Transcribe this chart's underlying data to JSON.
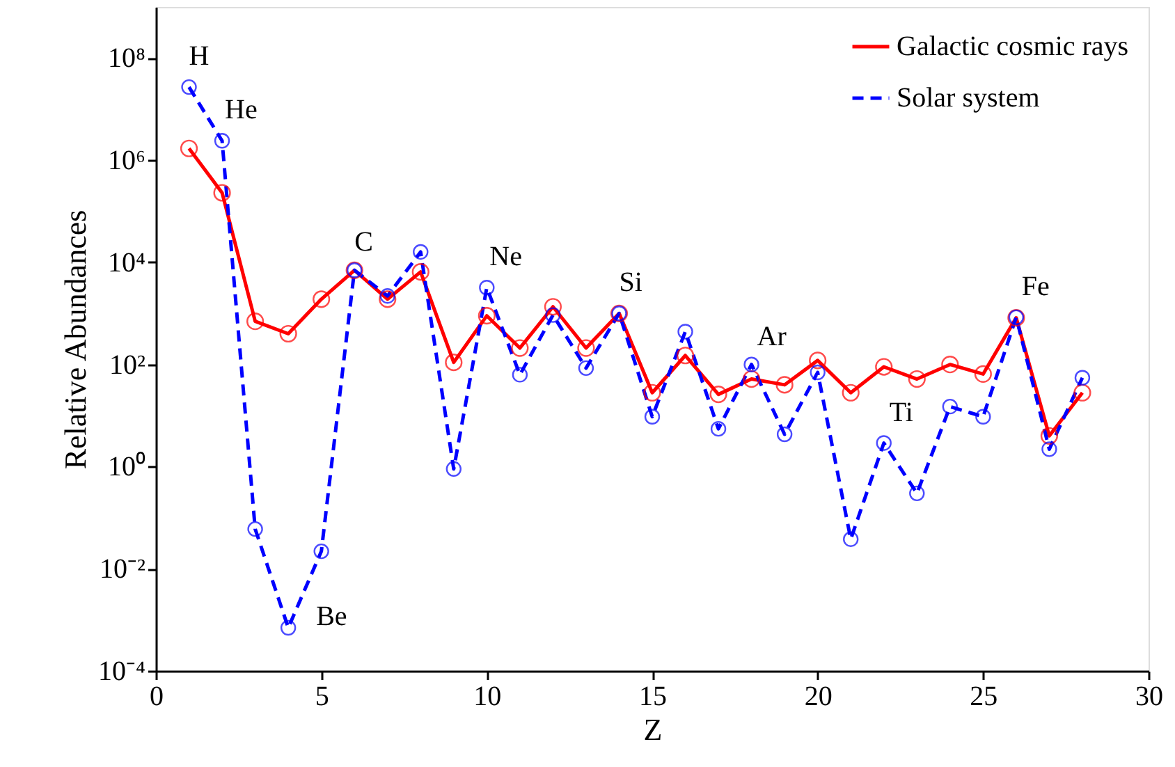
{
  "chart_data": {
    "type": "line",
    "xlabel": "Z",
    "ylabel": "Relative Abundances",
    "x": [
      1,
      2,
      3,
      4,
      5,
      6,
      7,
      8,
      9,
      10,
      11,
      12,
      13,
      14,
      15,
      16,
      17,
      18,
      19,
      20,
      21,
      22,
      23,
      24,
      25,
      26,
      27,
      28
    ],
    "series": [
      {
        "name": "Galactic cosmic rays",
        "color": "#ff0000",
        "line_style": "solid",
        "values": [
          1700000.0,
          230000.0,
          700,
          400,
          1900,
          7000,
          1900,
          6500,
          110,
          900,
          210,
          1350,
          210,
          1000,
          28,
          150,
          26,
          52,
          40,
          120,
          28,
          90,
          52,
          100,
          65,
          820,
          4,
          28
        ]
      },
      {
        "name": "Solar system",
        "color": "#0000ff",
        "line_style": "dashed",
        "values": [
          27000000.0,
          2400000.0,
          0.06,
          0.0007,
          0.022,
          7000,
          2200,
          16000,
          0.9,
          3200,
          63,
          930,
          85,
          1000,
          9.5,
          440,
          5.5,
          100,
          4.3,
          70,
          0.038,
          2.9,
          0.3,
          15,
          9.5,
          840,
          2.2,
          55
        ]
      }
    ],
    "annotations": [
      {
        "text": "H",
        "x": 1,
        "y": 27000000.0
      },
      {
        "text": "He",
        "x": 2,
        "y": 2400000.0
      },
      {
        "text": "Be",
        "x": 4,
        "y": 0.0007
      },
      {
        "text": "C",
        "x": 6,
        "y": 7000
      },
      {
        "text": "Ne",
        "x": 10,
        "y": 3200
      },
      {
        "text": "Si",
        "x": 14,
        "y": 1000
      },
      {
        "text": "Ar",
        "x": 18,
        "y": 100
      },
      {
        "text": "Ti",
        "x": 22,
        "y": 2.9
      },
      {
        "text": "Fe",
        "x": 26,
        "y": 840
      }
    ],
    "xlim": [
      0,
      30
    ],
    "xticks": [
      0,
      5,
      10,
      15,
      20,
      25,
      30
    ],
    "ylim": [
      0.0001,
      1000000000.0
    ],
    "yticks": [
      {
        "value": 0.0001,
        "label": "10⁻⁴"
      },
      {
        "value": 0.01,
        "label": "10⁻²"
      },
      {
        "value": 1,
        "label": "10⁰"
      },
      {
        "value": 100,
        "label": "10²"
      },
      {
        "value": 10000,
        "label": "10⁴"
      },
      {
        "value": 1000000,
        "label": "10⁶"
      },
      {
        "value": 100000000,
        "label": "10⁸"
      }
    ],
    "log": "y",
    "grid": false,
    "legend": "top right",
    "marker": "circle"
  }
}
